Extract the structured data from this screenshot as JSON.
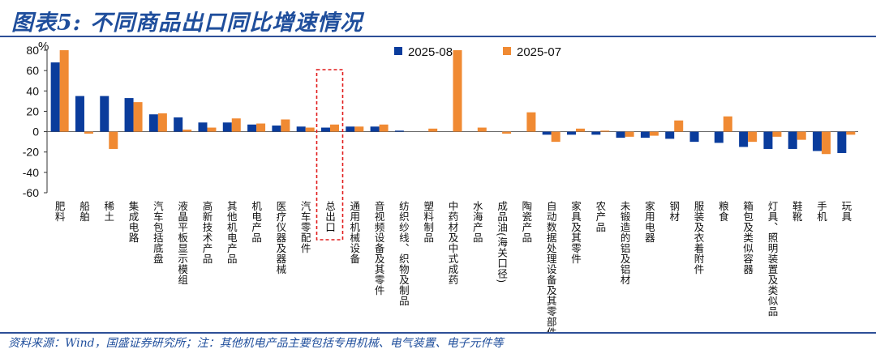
{
  "title": "图表5:  不同商品出口同比增速情况",
  "source": "资料来源：Wind，国盛证券研究所；注：其他机电产品主要包括专用机械、电气装置、电子元件等",
  "colors": {
    "s2025_08": "#0a3c9c",
    "s2025_07": "#f08a33",
    "highlight": "#e11b1b",
    "title": "#1f4e9c"
  },
  "chart_data": {
    "type": "bar",
    "ylabel": "%",
    "ylim": [
      -60,
      80
    ],
    "yticks": [
      -60,
      -40,
      -20,
      0,
      20,
      40,
      60,
      80
    ],
    "legend_position": "top-right",
    "highlight_category": "总出口",
    "categories": [
      "肥料",
      "船舶",
      "稀土",
      "集成电路",
      "汽车包括底盘",
      "液晶平板显示模组",
      "高新技术产品",
      "其他机电产品",
      "机电产品",
      "医疗仪器及器械",
      "汽车零配件",
      "总出口",
      "通用机械设备",
      "音视频设备及其零件",
      "纺织纱线、织物及制品",
      "塑料制品",
      "中药材及中式成药",
      "水海产品",
      "成品油(海关口径)",
      "陶瓷产品",
      "自动数据处理设备及其零部件",
      "家具及其零件",
      "农产品",
      "未锻造的铝及铝材",
      "家用电器",
      "钢材",
      "服装及衣着附件",
      "粮食",
      "箱包及类似容器",
      "灯具、照明装置及类似品",
      "鞋靴",
      "手机",
      "玩具"
    ],
    "series": [
      {
        "name": "2025-08",
        "values": [
          68,
          35,
          35,
          33,
          17,
          14,
          9,
          9,
          7,
          6,
          5,
          4,
          5,
          5,
          1,
          0,
          0,
          0,
          0,
          0,
          -3,
          -3,
          -3,
          -6,
          -6,
          -7,
          -10,
          -11,
          -15,
          -17,
          -17,
          -19,
          -21
        ]
      },
      {
        "name": "2025-07",
        "values": [
          80,
          -2,
          -17,
          29,
          18,
          2,
          4,
          13,
          8,
          12,
          4,
          7,
          5,
          7,
          0,
          3,
          80,
          4,
          -2,
          19,
          -10,
          3,
          1,
          -5,
          -4,
          11,
          0,
          15,
          -10,
          -5,
          -8,
          -22,
          -3
        ]
      }
    ]
  }
}
